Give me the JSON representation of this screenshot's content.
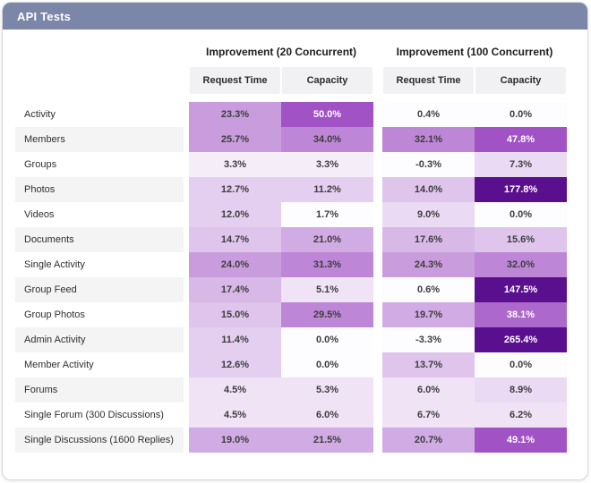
{
  "header": {
    "title": "API Tests"
  },
  "colors": {
    "header_bg": "#7c86a9",
    "card_border": "#d9d9de",
    "subheader_bg": "#f1f1f3",
    "stripe_bg": "#f4f4f5",
    "dark_text": "#3d3d3f",
    "light_text": "#ffffff"
  },
  "chart_data": {
    "type": "heatmap",
    "title": "API Tests",
    "groups": [
      "Improvement (20 Concurrent)",
      "Improvement (100 Concurrent)"
    ],
    "columns": [
      "Request Time",
      "Capacity",
      "Request Time",
      "Capacity"
    ],
    "value_format": "percent_1dp",
    "rows": [
      {
        "label": "Activity",
        "values": [
          23.3,
          50.0,
          0.4,
          0.0
        ]
      },
      {
        "label": "Members",
        "values": [
          25.7,
          34.0,
          32.1,
          47.8
        ]
      },
      {
        "label": "Groups",
        "values": [
          3.3,
          3.3,
          -0.3,
          7.3
        ]
      },
      {
        "label": "Photos",
        "values": [
          12.7,
          11.2,
          14.0,
          177.8
        ]
      },
      {
        "label": "Videos",
        "values": [
          12.0,
          1.7,
          9.0,
          0.0
        ]
      },
      {
        "label": "Documents",
        "values": [
          14.7,
          21.0,
          17.6,
          15.6
        ]
      },
      {
        "label": "Single Activity",
        "values": [
          24.0,
          31.3,
          24.3,
          32.0
        ]
      },
      {
        "label": "Group Feed",
        "values": [
          17.4,
          5.1,
          0.6,
          147.5
        ]
      },
      {
        "label": "Group Photos",
        "values": [
          15.0,
          29.5,
          19.7,
          38.1
        ]
      },
      {
        "label": "Admin Activity",
        "values": [
          11.4,
          0.0,
          -3.3,
          265.4
        ]
      },
      {
        "label": "Member Activity",
        "values": [
          12.6,
          0.0,
          13.7,
          0.0
        ]
      },
      {
        "label": "Forums",
        "values": [
          4.5,
          5.3,
          6.0,
          8.9
        ]
      },
      {
        "label": "Single Forum (300 Discussions)",
        "values": [
          4.5,
          6.0,
          6.7,
          6.2
        ]
      },
      {
        "label": "Single Discussions (1600 Replies)",
        "values": [
          19.0,
          21.5,
          20.7,
          49.1
        ]
      }
    ],
    "scale": [
      {
        "max": 2,
        "bg": "#fdfcfe",
        "fg": "#3d3d3f"
      },
      {
        "max": 4,
        "bg": "#f5eef9",
        "fg": "#3d3d3f"
      },
      {
        "max": 7,
        "bg": "#f0e3f6",
        "fg": "#3d3d3f"
      },
      {
        "max": 10,
        "bg": "#ebdaf3",
        "fg": "#3d3d3f"
      },
      {
        "max": 13,
        "bg": "#e5cff0",
        "fg": "#3d3d3f"
      },
      {
        "max": 16,
        "bg": "#dfc4ec",
        "fg": "#3d3d3f"
      },
      {
        "max": 19,
        "bg": "#d8b8e7",
        "fg": "#3d3d3f"
      },
      {
        "max": 22,
        "bg": "#d1abe3",
        "fg": "#3d3d3f"
      },
      {
        "max": 26,
        "bg": "#c99cdd",
        "fg": "#3d3d3f"
      },
      {
        "max": 35,
        "bg": "#bd86d6",
        "fg": "#3d3d3f"
      },
      {
        "max": 45,
        "bg": "#ad68cb",
        "fg": "#ffffff"
      },
      {
        "max": 60,
        "bg": "#a152c5",
        "fg": "#ffffff"
      },
      {
        "max": 120,
        "bg": "#7b2aa8",
        "fg": "#ffffff"
      },
      {
        "max": 999999,
        "bg": "#5a0f8f",
        "fg": "#ffffff"
      }
    ]
  }
}
